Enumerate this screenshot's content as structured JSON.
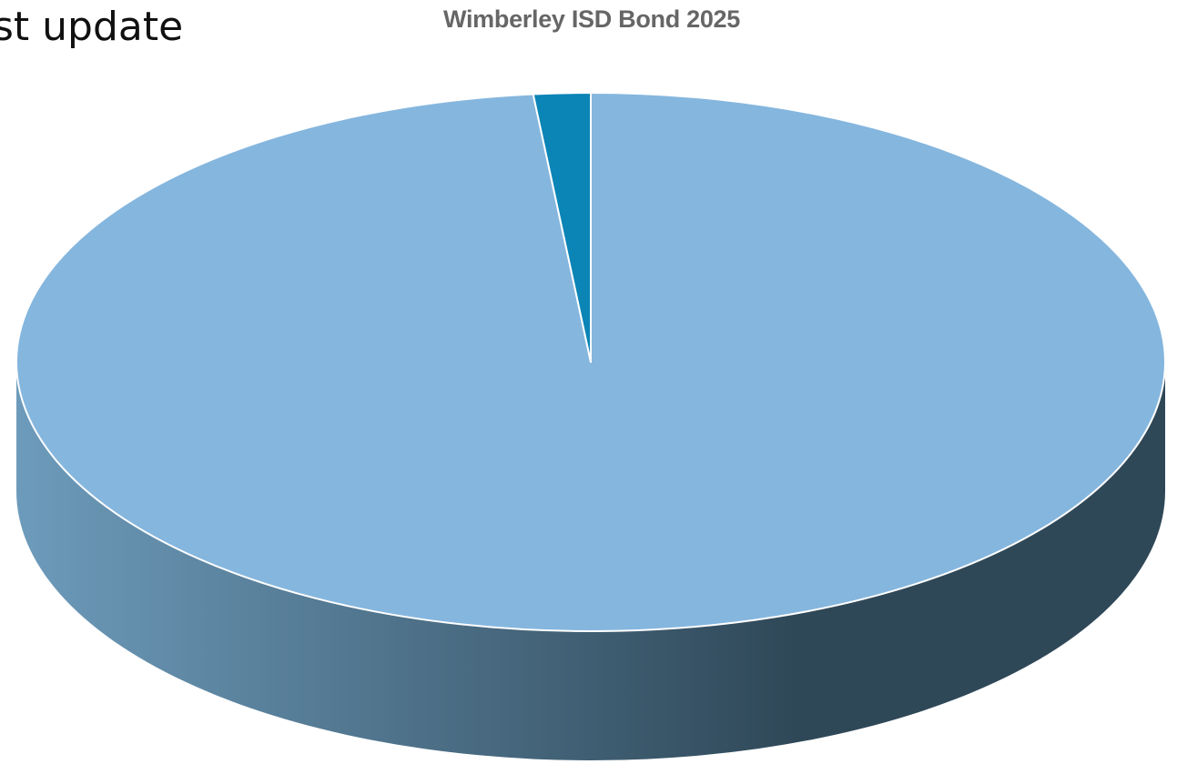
{
  "slide": {
    "heading": "st update"
  },
  "colors": {
    "main_slice": "#85B6DE",
    "small_slice": "#0B84B6",
    "side_left": "#6D9BBB",
    "side_right": "#2F4858"
  },
  "chart_data": {
    "type": "pie",
    "title": "Wimberley ISD Bond 2025",
    "view": "3d",
    "legend": "none",
    "slices": [
      {
        "label": "",
        "value": 98.4,
        "color": "#85B6DE"
      },
      {
        "label": "",
        "value": 1.6,
        "color": "#0B84B6"
      }
    ]
  }
}
